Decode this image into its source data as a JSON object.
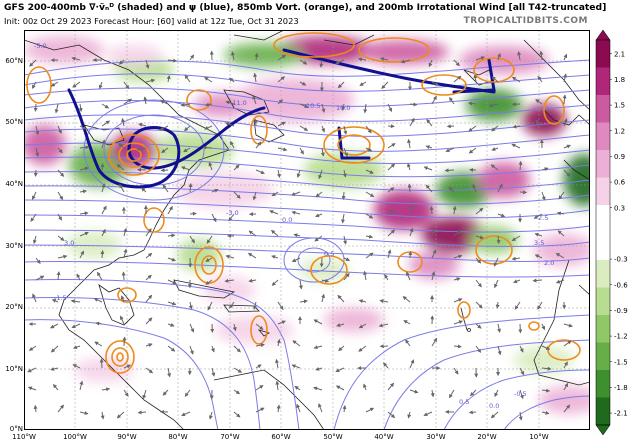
{
  "header": {
    "title": "GFS 200-400mb ∇·v̂ND (shaded) and ψ (blue), 850mb Vort. (orange), and 200mb Irrotational Wind [all T42-truncated]",
    "title_display": "GFS 200-400mb ∇·ṽₙᴰ (shaded) and ψ (blue), 850mb Vort. (orange), and 200mb Irrotational Wind [all T42-truncated]",
    "subtitle": "Init: 00z Oct 29 2023   Forecast Hour: [60]   valid at 12z Tue, Oct 31 2023",
    "brand": "TROPICALTIDBITS.COM"
  },
  "map": {
    "lat_labels": [
      "60°N",
      "50°N",
      "40°N",
      "30°N",
      "20°N",
      "10°N",
      "0°N"
    ],
    "lon_labels": [
      "110°W",
      "100°W",
      "90°W",
      "80°W",
      "70°W",
      "60°W",
      "50°W",
      "40°W",
      "30°W",
      "20°W",
      "10°W"
    ],
    "lat_range": [
      0,
      65
    ],
    "lon_range": [
      -110,
      0
    ],
    "contour_labels": [
      "-11.0",
      "10.5",
      "10.0",
      "-3.0",
      "0.0",
      "2.5",
      "-1.5",
      "0.5",
      "3.5",
      "-5.0",
      "3.0",
      "2.0",
      "0.5",
      "0.0",
      "-0.5"
    ],
    "colors": {
      "streamfunction": "#7b7be8",
      "streamfunction_bold": "#101090",
      "vorticity": "#ee8a1a",
      "land_outline": "#222222",
      "wind_arrows": "#666666"
    }
  },
  "colorbar": {
    "ticks": [
      "2.1",
      "1.8",
      "1.5",
      "1.2",
      "0.9",
      "0.6",
      "0.3",
      "-0.3",
      "-0.6",
      "-0.9",
      "-1.2",
      "-1.5",
      "-1.8",
      "-2.1"
    ],
    "range": [
      -2.1,
      2.1
    ],
    "colors_top_to_bottom": [
      "#8b0a50",
      "#b0277a",
      "#cc5aa0",
      "#de8ac0",
      "#ecb0d6",
      "#f5d2e8",
      "#ffffff",
      "#ffffff",
      "#daecc0",
      "#b8dc90",
      "#90c868",
      "#66ae48",
      "#3e8f2e",
      "#1f6a1c"
    ]
  }
}
